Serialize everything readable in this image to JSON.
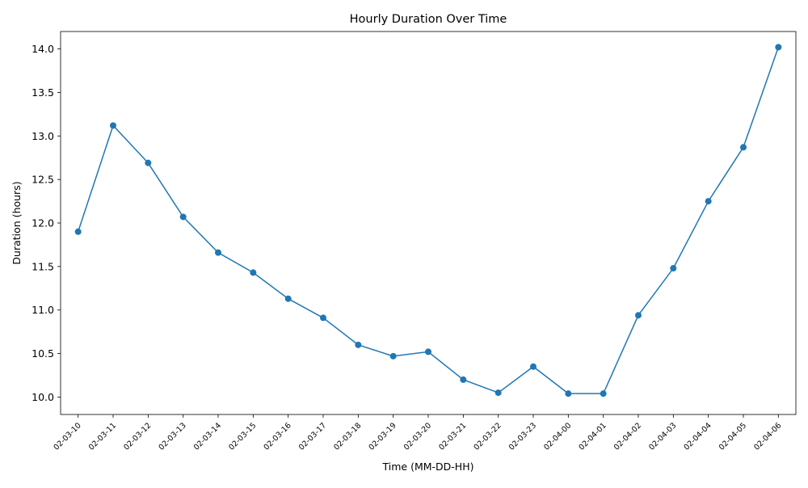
{
  "chart_data": {
    "type": "line",
    "title": "Hourly Duration Over Time",
    "xlabel": "Time (MM-DD-HH)",
    "ylabel": "Duration (hours)",
    "categories": [
      "02-03-10",
      "02-03-11",
      "02-03-12",
      "02-03-13",
      "02-03-14",
      "02-03-15",
      "02-03-16",
      "02-03-17",
      "02-03-18",
      "02-03-19",
      "02-03-20",
      "02-03-21",
      "02-03-22",
      "02-03-23",
      "02-04-00",
      "02-04-01",
      "02-04-02",
      "02-04-03",
      "02-04-04",
      "02-04-05",
      "02-04-06"
    ],
    "series": [
      {
        "name": "Duration",
        "color": "#1f77b4",
        "marker": "circle",
        "values": [
          11.9,
          13.12,
          12.69,
          12.07,
          11.66,
          11.43,
          11.13,
          10.91,
          10.6,
          10.47,
          10.52,
          10.2,
          10.05,
          10.35,
          10.04,
          10.04,
          10.94,
          11.48,
          12.25,
          12.87,
          14.02
        ]
      }
    ],
    "ylim": [
      9.8,
      14.2
    ],
    "yticks": [
      10.0,
      10.5,
      11.0,
      11.5,
      12.0,
      12.5,
      13.0,
      13.5,
      14.0
    ],
    "ytick_labels": [
      "10.0",
      "10.5",
      "11.0",
      "11.5",
      "12.0",
      "12.5",
      "13.0",
      "13.5",
      "14.0"
    ],
    "grid": false,
    "legend": false
  }
}
